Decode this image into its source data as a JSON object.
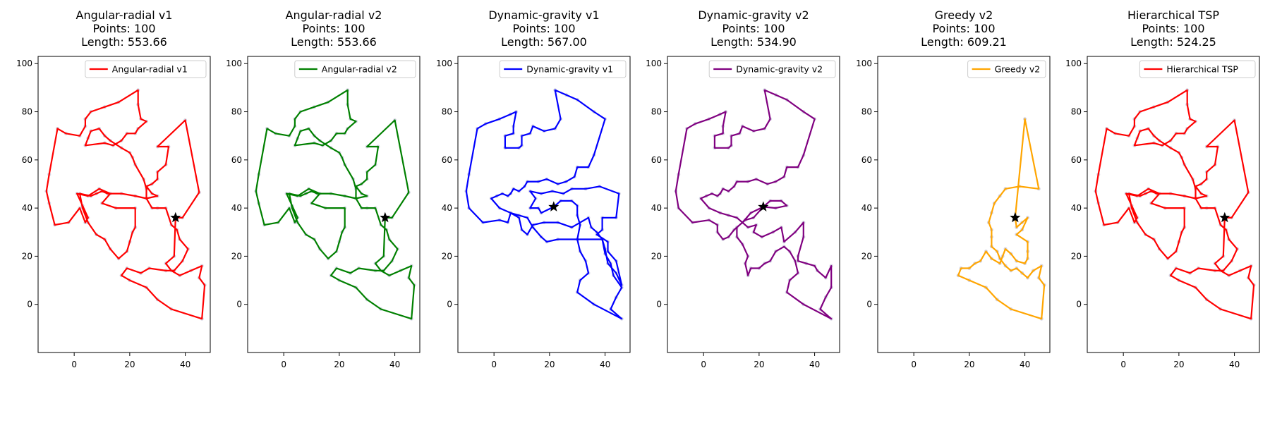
{
  "figure": {
    "panel_count": 6,
    "shared_axes": {
      "xlim": [
        -13,
        49
      ],
      "ylim": [
        -20,
        103
      ],
      "xticks": [
        0,
        20,
        40
      ],
      "yticks": [
        0,
        20,
        40,
        60,
        80,
        100
      ]
    }
  },
  "chart_data": [
    {
      "type": "line",
      "title_lines": [
        "Angular-radial v1",
        "Points: 100",
        "Length: 553.66"
      ],
      "legend": "Angular-radial v1",
      "legend_position": "upper right",
      "color": "#ff0000",
      "start": [
        36.5,
        36
      ],
      "route": [
        [
          36.5,
          36
        ],
        [
          39,
          36
        ],
        [
          37,
          32
        ],
        [
          35,
          31
        ],
        [
          38,
          26
        ],
        [
          41,
          23
        ],
        [
          39,
          18
        ],
        [
          36,
          14
        ],
        [
          33,
          17
        ],
        [
          35,
          21
        ],
        [
          37,
          27
        ],
        [
          37,
          31
        ],
        [
          35,
          33
        ],
        [
          29,
          35
        ],
        [
          29,
          40
        ],
        [
          20,
          40
        ],
        [
          16,
          42
        ],
        [
          14,
          44
        ],
        [
          10,
          45
        ],
        [
          9,
          48
        ],
        [
          7,
          47
        ],
        [
          5,
          45
        ],
        [
          2,
          46
        ],
        [
          3,
          40
        ],
        [
          4,
          34
        ],
        [
          8,
          29
        ],
        [
          9,
          27
        ],
        [
          11,
          27
        ],
        [
          13,
          23
        ],
        [
          16,
          19
        ],
        [
          19,
          22
        ],
        [
          20,
          26
        ],
        [
          21,
          30
        ],
        [
          22,
          32
        ],
        [
          22,
          38
        ],
        [
          20,
          40
        ]
      ],
      "route2": [
        [
          36.5,
          36
        ],
        [
          39,
          36
        ],
        [
          45,
          46.5
        ],
        [
          40,
          77
        ],
        [
          30,
          65
        ],
        [
          30,
          66
        ],
        [
          26,
          65
        ],
        [
          26,
          58
        ],
        [
          24,
          55
        ],
        [
          25,
          50
        ],
        [
          27,
          47
        ],
        [
          28,
          46
        ],
        [
          26,
          44
        ],
        [
          24,
          43
        ],
        [
          21,
          45
        ],
        [
          17,
          46
        ],
        [
          14,
          46
        ],
        [
          10,
          47
        ],
        [
          7,
          47
        ]
      ],
      "path": [
        [
          36.5,
          36
        ],
        [
          39,
          36
        ],
        [
          45,
          46.5
        ],
        [
          41,
          76.5
        ],
        [
          30,
          65.5
        ],
        [
          24,
          65
        ],
        [
          23,
          55
        ],
        [
          26,
          51
        ],
        [
          27,
          48
        ],
        [
          24,
          44
        ],
        [
          19,
          45
        ],
        [
          12,
          46
        ],
        [
          9,
          48
        ],
        [
          7,
          46
        ],
        [
          5,
          45
        ],
        [
          2,
          46
        ],
        [
          3,
          40
        ],
        [
          4,
          34
        ],
        [
          8,
          29
        ],
        [
          11,
          27
        ],
        [
          13,
          23
        ],
        [
          16,
          19
        ],
        [
          19,
          22
        ],
        [
          20,
          26
        ],
        [
          21,
          30
        ],
        [
          22,
          32
        ],
        [
          22,
          40
        ],
        [
          22,
          42
        ],
        [
          20,
          40
        ],
        [
          28,
          40
        ],
        [
          29,
          40
        ],
        [
          29,
          35
        ],
        [
          35,
          31
        ],
        [
          38,
          26
        ],
        [
          41,
          23
        ],
        [
          39,
          18
        ],
        [
          36,
          14
        ],
        [
          33,
          14
        ],
        [
          27,
          15
        ],
        [
          24,
          13
        ],
        [
          19,
          15
        ],
        [
          17,
          12
        ],
        [
          20,
          10
        ],
        [
          26,
          7
        ],
        [
          28,
          5
        ],
        [
          30,
          2
        ],
        [
          35,
          -2
        ],
        [
          46,
          -6
        ],
        [
          47,
          8
        ],
        [
          45,
          11
        ],
        [
          46,
          16
        ],
        [
          42,
          14
        ],
        [
          38,
          12
        ],
        [
          36,
          13
        ],
        [
          34,
          16
        ],
        [
          33,
          20
        ],
        [
          30,
          21
        ],
        [
          28,
          23
        ],
        [
          26,
          32
        ],
        [
          24,
          38
        ],
        [
          17,
          38
        ],
        [
          15,
          43
        ],
        [
          13,
          45
        ],
        [
          10,
          41
        ],
        [
          8,
          38
        ],
        [
          5,
          33
        ],
        [
          2,
          40
        ],
        [
          -2,
          34
        ],
        [
          -7,
          33
        ],
        [
          -9,
          42
        ],
        [
          -10,
          47
        ],
        [
          -9,
          54
        ],
        [
          -6,
          73
        ],
        [
          -3,
          71
        ],
        [
          2,
          70
        ],
        [
          4,
          74
        ],
        [
          4,
          77
        ],
        [
          6,
          80
        ],
        [
          11,
          82
        ],
        [
          16,
          84
        ],
        [
          23,
          89
        ],
        [
          23,
          83
        ],
        [
          24,
          77
        ],
        [
          26,
          76
        ],
        [
          23,
          73
        ],
        [
          22,
          71
        ],
        [
          19,
          71
        ],
        [
          17,
          68
        ],
        [
          14,
          66
        ],
        [
          11,
          67
        ],
        [
          10,
          66
        ],
        [
          4,
          66
        ],
        [
          5,
          68
        ],
        [
          6,
          72
        ]
      ],
      "segments": [
        [
          [
            36.5,
            36
          ],
          [
            39,
            36
          ]
        ]
      ]
    }
  ]
}
